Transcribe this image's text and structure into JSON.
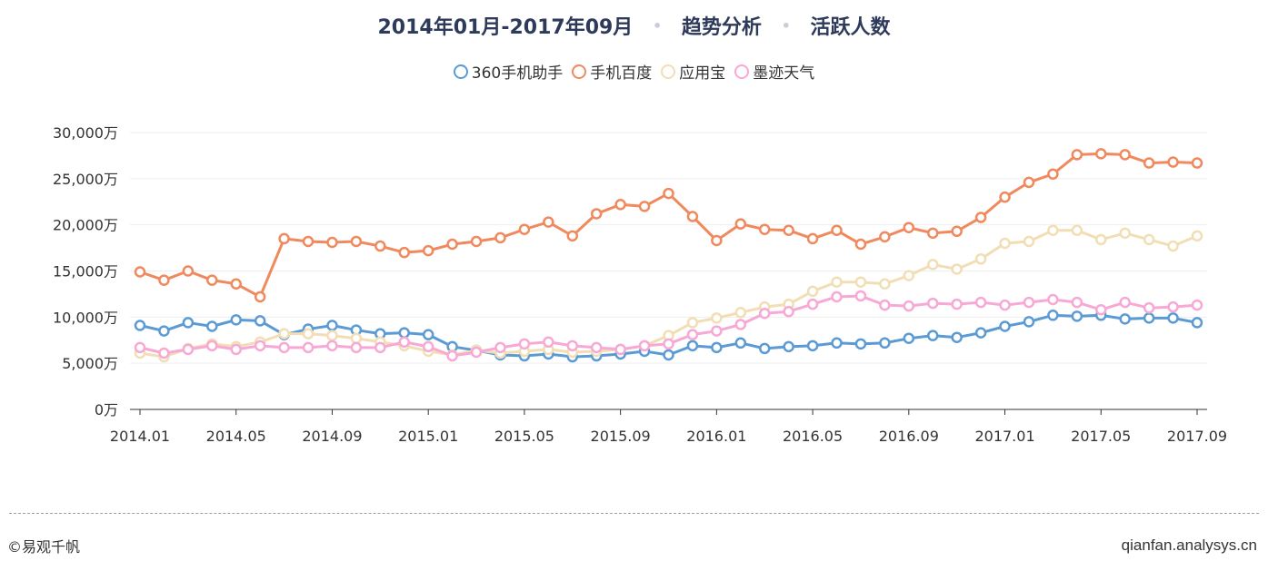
{
  "header": {
    "period": "2014年01月-2017年09月",
    "analysis": "趋势分析",
    "metric": "活跃人数",
    "separator": "•"
  },
  "footer": {
    "brand": "©易观千帆",
    "site": "qianfan.analysys.cn"
  },
  "chart_data": {
    "type": "line",
    "title": "2014年01月-2017年09月 • 趋势分析 • 活跃人数",
    "xlabel": "",
    "ylabel": "",
    "x": [
      "2014.01",
      "2014.02",
      "2014.03",
      "2014.04",
      "2014.05",
      "2014.06",
      "2014.07",
      "2014.08",
      "2014.09",
      "2014.10",
      "2014.11",
      "2014.12",
      "2015.01",
      "2015.02",
      "2015.03",
      "2015.04",
      "2015.05",
      "2015.06",
      "2015.07",
      "2015.08",
      "2015.09",
      "2015.10",
      "2015.11",
      "2015.12",
      "2016.01",
      "2016.02",
      "2016.03",
      "2016.04",
      "2016.05",
      "2016.06",
      "2016.07",
      "2016.08",
      "2016.09",
      "2016.10",
      "2016.11",
      "2016.12",
      "2017.01",
      "2017.02",
      "2017.03",
      "2017.04",
      "2017.05",
      "2017.06",
      "2017.07",
      "2017.08",
      "2017.09"
    ],
    "x_tick_labels": [
      "2014.01",
      "2014.05",
      "2014.09",
      "2015.01",
      "2015.05",
      "2015.09",
      "2016.01",
      "2016.05",
      "2016.09",
      "2017.01",
      "2017.05",
      "2017.09"
    ],
    "y_ticks": [
      0,
      5000,
      10000,
      15000,
      20000,
      25000,
      30000
    ],
    "y_tick_labels": [
      "0万",
      "5,000万",
      "10,000万",
      "15,000万",
      "20,000万",
      "25,000万",
      "30,000万"
    ],
    "ylim": [
      0,
      30000
    ],
    "grid": true,
    "legend_position": "top-center",
    "series": [
      {
        "name": "360手机助手",
        "color": "#5b9bd5",
        "values": [
          9100,
          8500,
          9400,
          9000,
          9700,
          9600,
          8100,
          8700,
          9100,
          8600,
          8200,
          8300,
          8100,
          6800,
          6400,
          5900,
          5800,
          6000,
          5700,
          5800,
          6000,
          6300,
          5900,
          6900,
          6700,
          7200,
          6600,
          6800,
          6900,
          7200,
          7100,
          7200,
          7700,
          8000,
          7800,
          8300,
          9000,
          9500,
          10200,
          10100,
          10200,
          9800,
          9900,
          9900,
          9400
        ]
      },
      {
        "name": "手机百度",
        "color": "#f0895d",
        "values": [
          14900,
          14000,
          15000,
          14000,
          13600,
          12200,
          18500,
          18200,
          18100,
          18200,
          17700,
          17000,
          17200,
          17900,
          18200,
          18600,
          19500,
          20300,
          18800,
          21200,
          22200,
          22000,
          23400,
          20900,
          18300,
          20100,
          19500,
          19400,
          18500,
          19400,
          17900,
          18700,
          19700,
          19100,
          19300,
          20800,
          23000,
          24600,
          25500,
          27600,
          27700,
          27600,
          26700,
          26800,
          26700
        ]
      },
      {
        "name": "应用宝",
        "color": "#f2deb4",
        "values": [
          6100,
          5700,
          6600,
          7100,
          6800,
          7300,
          8200,
          8200,
          8000,
          7700,
          7300,
          6900,
          6300,
          5900,
          6400,
          6100,
          6300,
          6500,
          6200,
          6300,
          6500,
          6900,
          8000,
          9400,
          9900,
          10500,
          11100,
          11400,
          12800,
          13800,
          13800,
          13600,
          14500,
          15700,
          15200,
          16300,
          18000,
          18200,
          19400,
          19400,
          18400,
          19100,
          18400,
          17700,
          18800
        ]
      },
      {
        "name": "墨迹天气",
        "color": "#f7a8d4",
        "values": [
          6700,
          6100,
          6500,
          6900,
          6500,
          6900,
          6700,
          6700,
          6900,
          6700,
          6700,
          7300,
          6800,
          5800,
          6200,
          6700,
          7100,
          7300,
          6900,
          6700,
          6500,
          6900,
          7100,
          8100,
          8500,
          9200,
          10400,
          10600,
          11400,
          12200,
          12300,
          11300,
          11200,
          11500,
          11400,
          11600,
          11300,
          11600,
          11900,
          11600,
          10800,
          11600,
          11000,
          11100,
          11300
        ]
      }
    ]
  }
}
